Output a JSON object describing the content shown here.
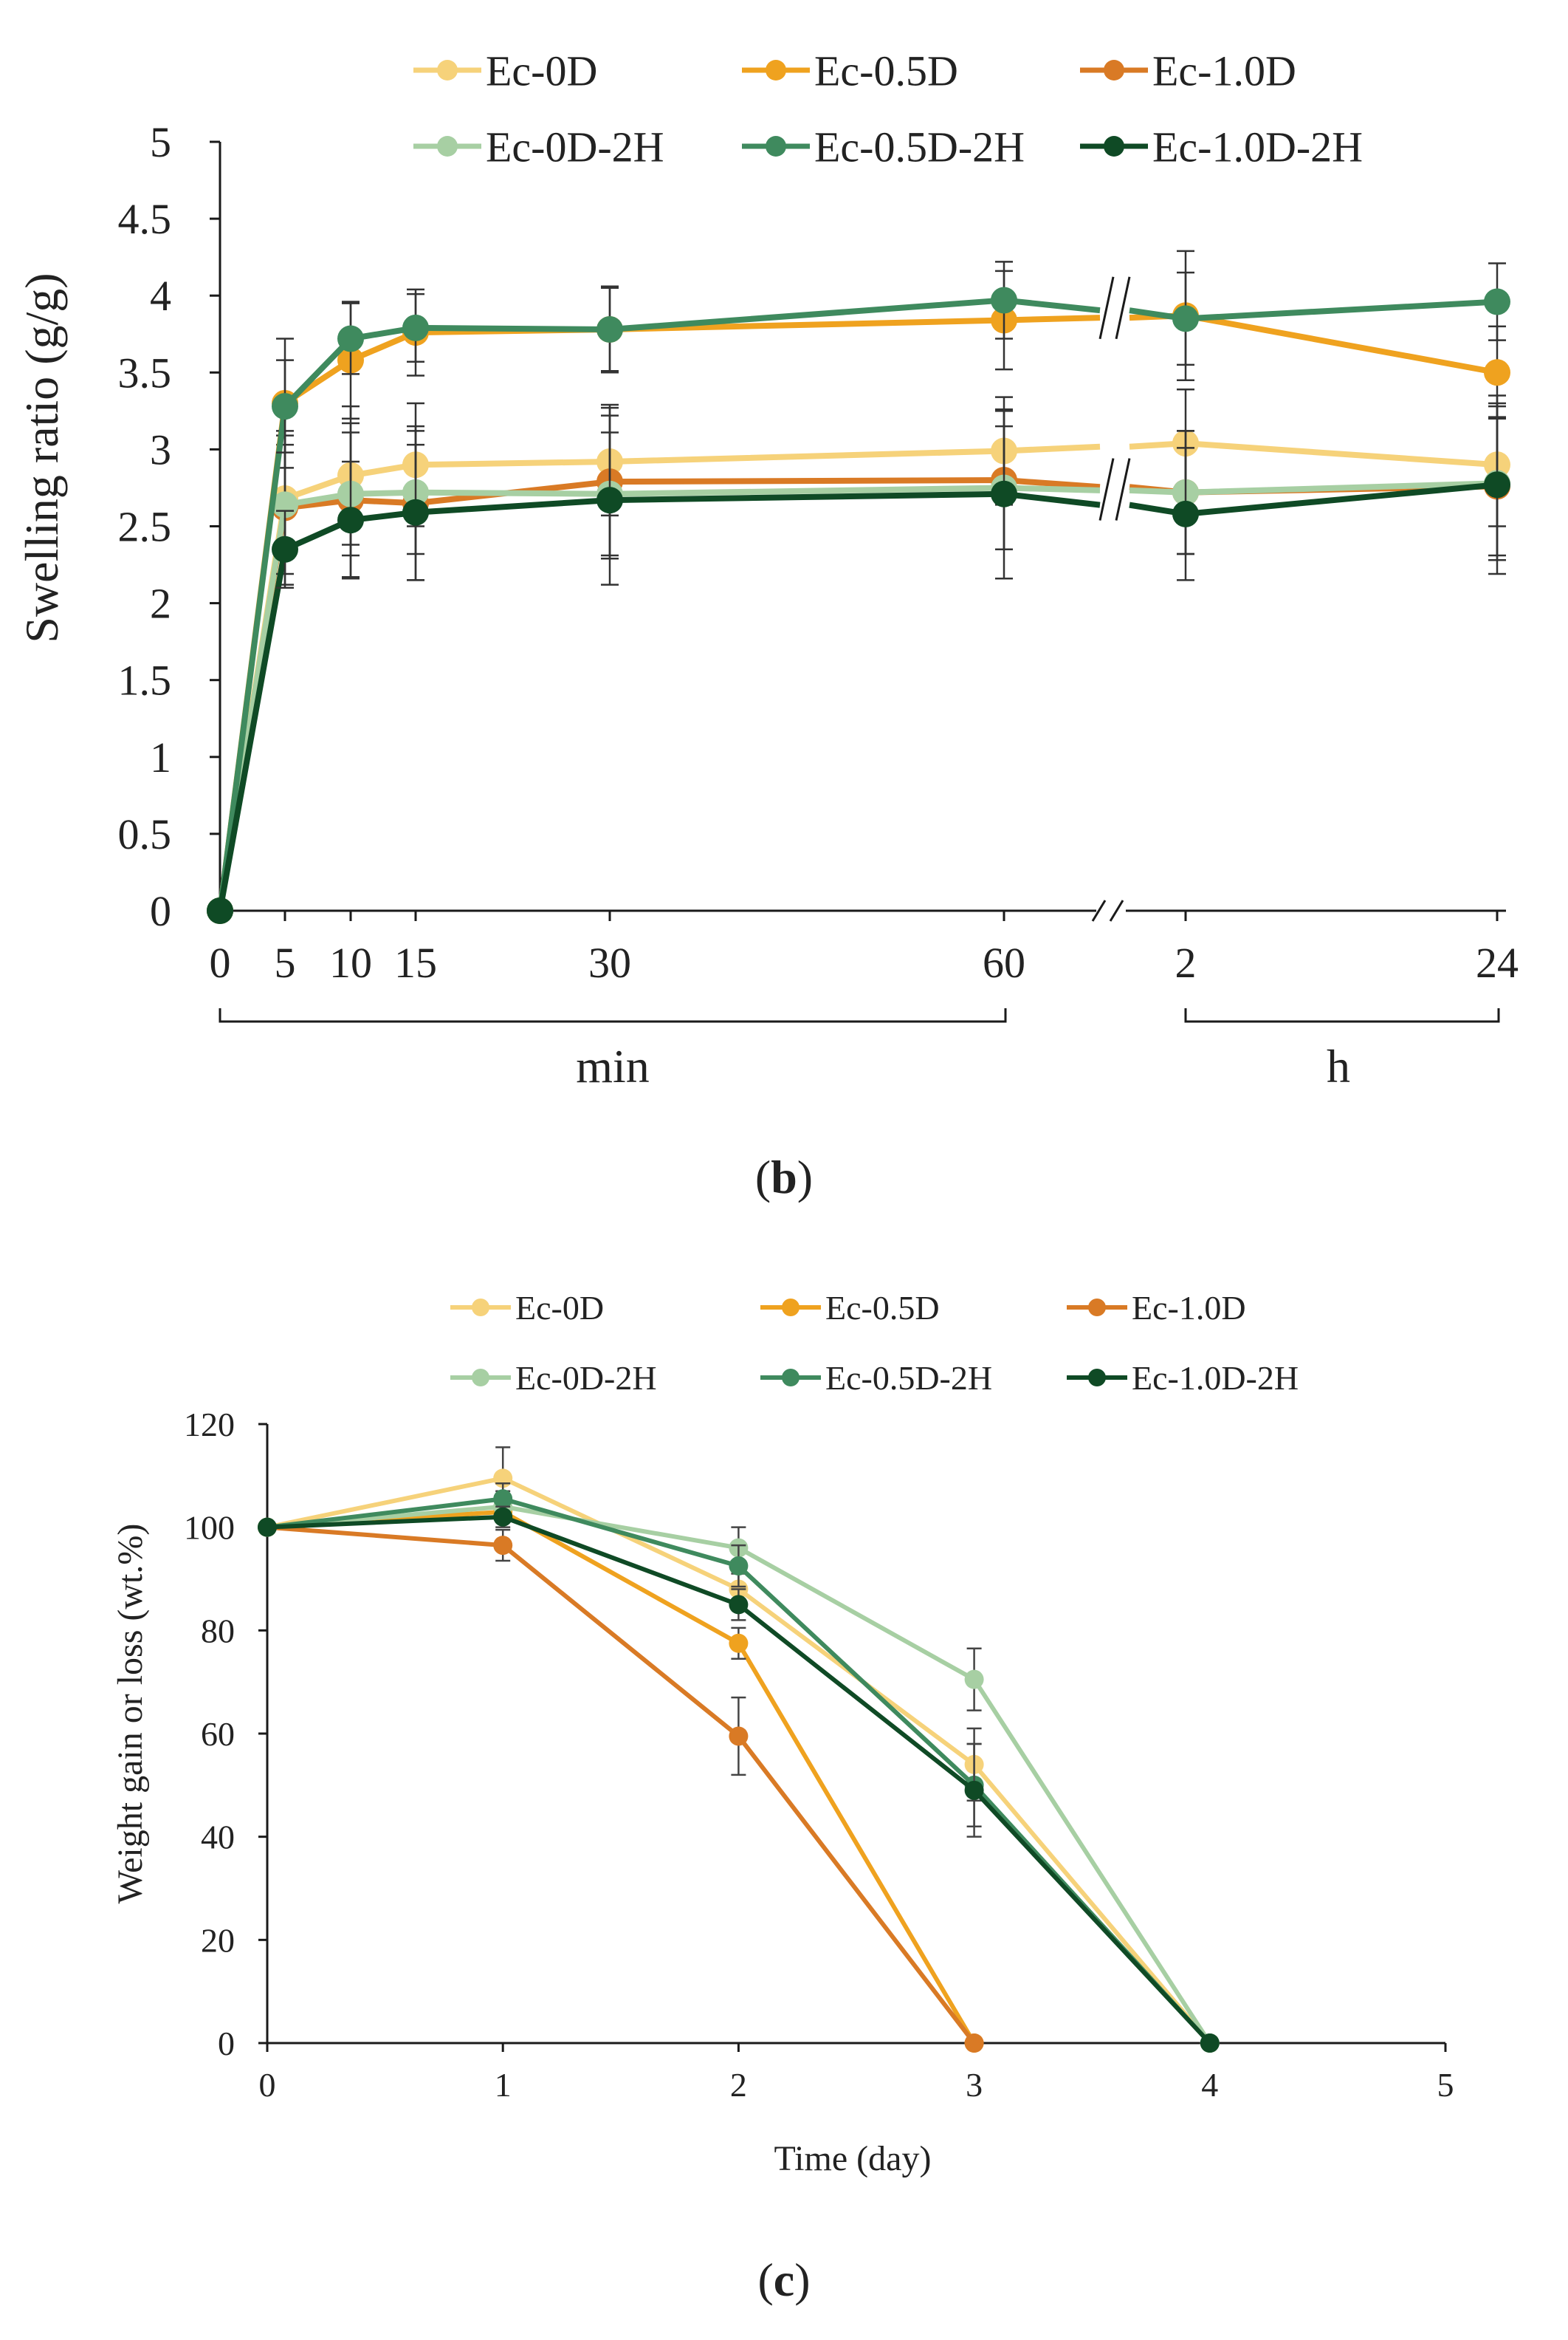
{
  "colors": {
    "ec0d": "#F6D27A",
    "ec05d": "#EFA21F",
    "ec10d": "#D97A25",
    "ec0d2h": "#A7CFA3",
    "ec05d2h": "#3F8A5E",
    "ec10d2h": "#0F4A25",
    "axis": "#1a1a1a"
  },
  "chart_data": [
    {
      "panel": "b",
      "panel_label": "b",
      "type": "line",
      "title": "",
      "ylabel": "Swelling ratio (g/g)",
      "xlabel": "",
      "ylim": [
        0,
        5
      ],
      "yticks": [
        "0",
        "0.5",
        "1",
        "1.5",
        "2",
        "2.5",
        "3",
        "3.5",
        "4",
        "4.5",
        "5"
      ],
      "x": [
        0,
        5,
        10,
        15,
        30,
        60,
        120,
        1440
      ],
      "xtick_labels": [
        "0",
        "5",
        "10",
        "15",
        "30",
        "60",
        "2",
        "24"
      ],
      "axis_break": "between 60 min and 2 h",
      "group_labels": [
        "min",
        "h"
      ],
      "legend_position": "top",
      "series": [
        {
          "name": "Ec-0D",
          "color_key": "ec0d",
          "values": [
            0,
            2.68,
            2.83,
            2.9,
            2.92,
            2.99,
            3.04,
            2.9
          ],
          "errors": [
            0,
            0.35,
            0.45,
            0.4,
            0.35,
            0.35,
            0.35,
            0.4
          ]
        },
        {
          "name": "Ec-0.5D",
          "color_key": "ec05d",
          "values": [
            0,
            3.3,
            3.58,
            3.76,
            3.78,
            3.84,
            3.87,
            3.5
          ],
          "errors": [
            0,
            0.42,
            0.38,
            0.28,
            0.27,
            0.32,
            0.42,
            0.3
          ]
        },
        {
          "name": "Ec-1.0D",
          "color_key": "ec10d",
          "values": [
            0,
            2.62,
            2.67,
            2.65,
            2.79,
            2.8,
            2.72,
            2.76
          ],
          "errors": [
            0,
            0.5,
            0.5,
            0.5,
            0.5,
            0.45,
            0.4,
            0.45
          ]
        },
        {
          "name": "Ec-0D-2H",
          "color_key": "ec0d2h",
          "values": [
            0,
            2.64,
            2.71,
            2.72,
            2.71,
            2.75,
            2.72,
            2.78
          ],
          "errors": [
            0,
            0.45,
            0.4,
            0.4,
            0.4,
            0.4,
            0.4,
            0.5
          ]
        },
        {
          "name": "Ec-0.5D-2H",
          "color_key": "ec05d2h",
          "values": [
            0,
            3.28,
            3.72,
            3.79,
            3.78,
            3.97,
            3.85,
            3.96
          ],
          "errors": [
            0,
            0.3,
            0.23,
            0.22,
            0.28,
            0.25,
            0.3,
            0.25
          ]
        },
        {
          "name": "Ec-1.0D-2H",
          "color_key": "ec10d2h",
          "values": [
            0,
            2.35,
            2.54,
            2.59,
            2.67,
            2.71,
            2.58,
            2.77
          ],
          "errors": [
            0,
            0.25,
            0.38,
            0.44,
            0.55,
            0.55,
            0.43,
            0.58
          ]
        }
      ]
    },
    {
      "panel": "c",
      "panel_label": "c",
      "type": "line",
      "title": "",
      "ylabel": "Weight gain or loss (wt.%)",
      "xlabel": "Time (day)",
      "xlim": [
        0,
        5
      ],
      "ylim": [
        0,
        120
      ],
      "xticks": [
        "0",
        "1",
        "2",
        "3",
        "4",
        "5"
      ],
      "yticks": [
        "0",
        "20",
        "40",
        "60",
        "80",
        "100",
        "120"
      ],
      "legend_position": "top",
      "series": [
        {
          "name": "Ec-0D",
          "color_key": "ec0d",
          "x": [
            0,
            1,
            2,
            3,
            4
          ],
          "values": [
            100,
            109.5,
            88,
            54,
            0
          ],
          "errors": [
            0,
            6,
            3,
            7,
            0
          ]
        },
        {
          "name": "Ec-0.5D",
          "color_key": "ec05d",
          "x": [
            0,
            1,
            2,
            3
          ],
          "values": [
            100,
            103,
            77.5,
            0
          ],
          "errors": [
            0,
            2,
            3,
            0
          ]
        },
        {
          "name": "Ec-1.0D",
          "color_key": "ec10d",
          "x": [
            0,
            1,
            2,
            3
          ],
          "values": [
            100,
            96.5,
            59.5,
            0
          ],
          "errors": [
            0,
            3,
            7.5,
            0
          ]
        },
        {
          "name": "Ec-0D-2H",
          "color_key": "ec0d2h",
          "x": [
            0,
            1,
            2,
            3,
            4
          ],
          "values": [
            100,
            104,
            96,
            70.5,
            0
          ],
          "errors": [
            0,
            3,
            4,
            6,
            0
          ]
        },
        {
          "name": "Ec-0.5D-2H",
          "color_key": "ec05d2h",
          "x": [
            0,
            1,
            2,
            3,
            4
          ],
          "values": [
            100,
            105.5,
            92.5,
            50,
            0
          ],
          "errors": [
            0,
            3,
            4,
            8,
            0
          ]
        },
        {
          "name": "Ec-1.0D-2H",
          "color_key": "ec10d2h",
          "x": [
            0,
            1,
            2,
            3,
            4
          ],
          "values": [
            100,
            102,
            85,
            49,
            0
          ],
          "errors": [
            0,
            2,
            3,
            9,
            0
          ]
        }
      ]
    }
  ]
}
